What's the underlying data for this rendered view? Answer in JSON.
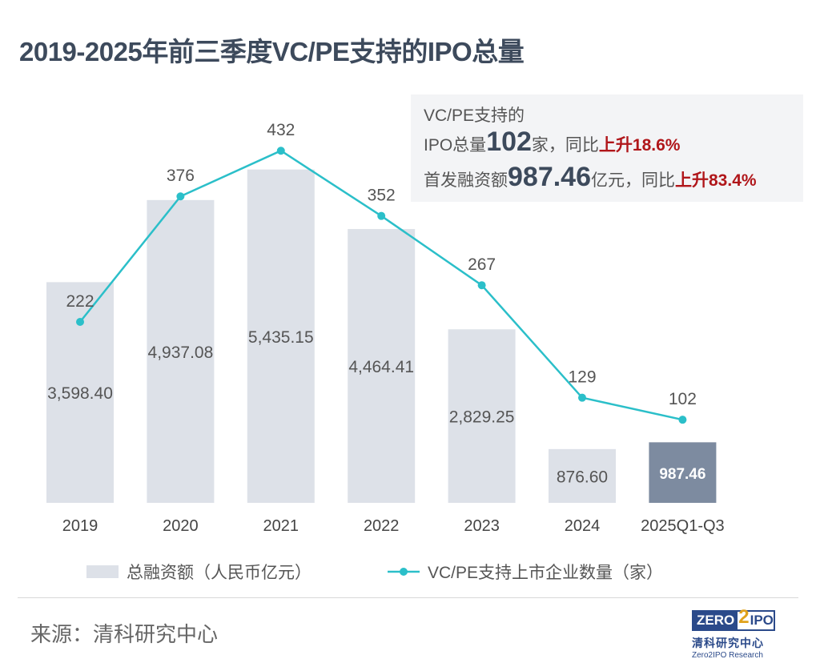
{
  "title": "2019-2025年前三季度VC/PE支持的IPO总量",
  "callout": {
    "line1": "VC/PE支持的",
    "line2_prefix": "IPO总量",
    "line2_value": "102",
    "line2_unit": "家，同比",
    "line2_change": "上升18.6%",
    "line3_prefix": "首发融资额",
    "line3_value": "987.46",
    "line3_unit": "亿元，同比",
    "line3_change": "上升83.4%"
  },
  "source": "来源：清科研究中心",
  "logo": {
    "left": "ZERO",
    "mid": "2",
    "right": "IPO",
    "cn": "清科研究中心",
    "en": "Zero2IPO Research"
  },
  "colors": {
    "bar": "#dde1e8",
    "bar_highlight": "#7d8ba0",
    "line": "#2bbfc9",
    "change": "#b0161a"
  },
  "chart_data": {
    "type": "bar+line",
    "categories": [
      "2019",
      "2020",
      "2021",
      "2022",
      "2023",
      "2024",
      "2025Q1-Q3"
    ],
    "series": [
      {
        "name": "总融资额（人民币亿元）",
        "type": "bar",
        "values": [
          3598.4,
          4937.08,
          5435.15,
          4464.41,
          2829.25,
          876.6,
          987.46
        ],
        "labels": [
          "3,598.40",
          "4,937.08",
          "5,435.15",
          "4,464.41",
          "2,829.25",
          "876.60",
          "987.46"
        ]
      },
      {
        "name": "VC/PE支持上市企业数量（家）",
        "type": "line",
        "values": [
          222,
          376,
          432,
          352,
          267,
          129,
          102
        ]
      }
    ],
    "legend": "bottom",
    "grid": false
  }
}
